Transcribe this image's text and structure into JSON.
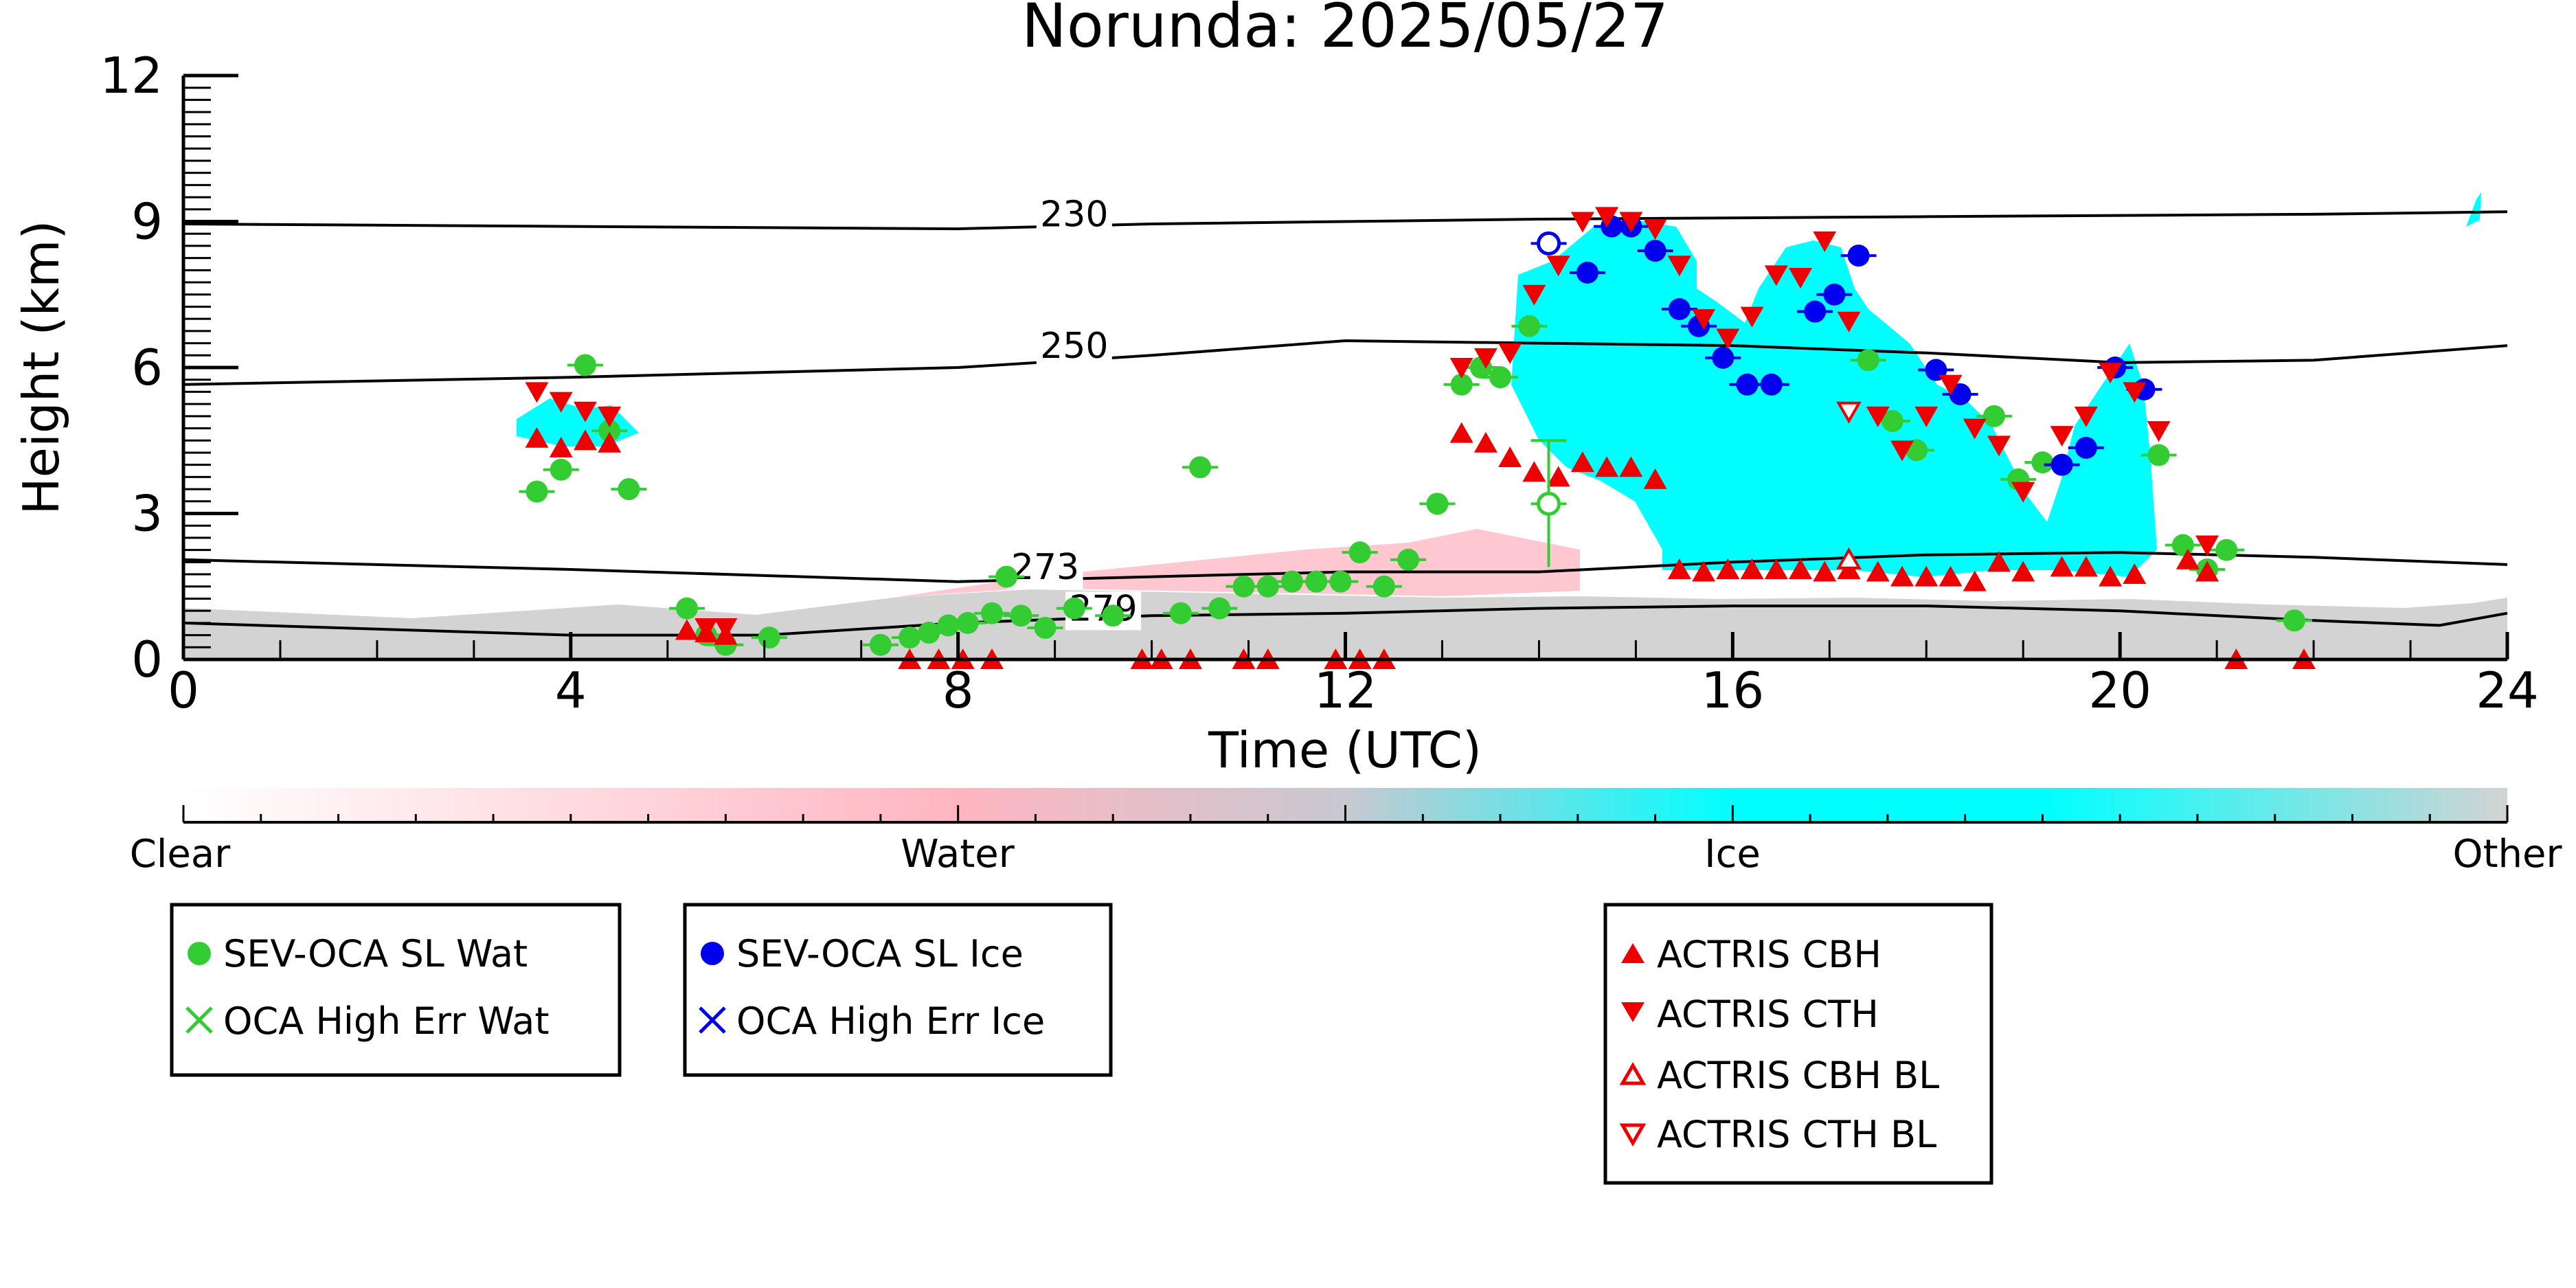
{
  "chart_data": {
    "type": "scatter",
    "title": "Norunda: 2025/05/27",
    "xlabel": "Time (UTC)",
    "ylabel": "Height (km)",
    "xlim": [
      0,
      24
    ],
    "ylim": [
      0,
      12
    ],
    "x_ticks": [
      0,
      4,
      8,
      12,
      16,
      20,
      24
    ],
    "y_ticks": [
      0,
      3,
      6,
      9,
      12
    ],
    "x_tick_labels": [
      "0",
      "4",
      "8",
      "12",
      "16",
      "20",
      "24"
    ],
    "y_tick_labels": [
      "0",
      "3",
      "6",
      "9",
      "12"
    ],
    "grid": false,
    "colorbar": {
      "labels": [
        "Clear",
        "Water",
        "Ice",
        "Other"
      ],
      "colors": [
        "#ffffff",
        "#ffb6c1",
        "#00ffff",
        "#d3d3d3"
      ]
    },
    "contours": [
      {
        "label": "230",
        "label_at": [
          9.2,
          8.9
        ],
        "points": [
          [
            0,
            8.95
          ],
          [
            4,
            8.9
          ],
          [
            8,
            8.85
          ],
          [
            10,
            8.95
          ],
          [
            14,
            9.05
          ],
          [
            18,
            9.1
          ],
          [
            22,
            9.15
          ],
          [
            24,
            9.2
          ]
        ]
      },
      {
        "label": "250",
        "label_at": [
          9.2,
          6.2
        ],
        "points": [
          [
            0,
            5.65
          ],
          [
            4,
            5.8
          ],
          [
            8,
            6.0
          ],
          [
            10,
            6.25
          ],
          [
            12,
            6.55
          ],
          [
            14,
            6.5
          ],
          [
            16,
            6.45
          ],
          [
            18,
            6.3
          ],
          [
            20,
            6.1
          ],
          [
            22,
            6.15
          ],
          [
            24,
            6.45
          ]
        ]
      },
      {
        "label": "273",
        "label_at": [
          8.9,
          1.65
        ],
        "points": [
          [
            0,
            2.05
          ],
          [
            4,
            1.85
          ],
          [
            8,
            1.6
          ],
          [
            10,
            1.7
          ],
          [
            12,
            1.8
          ],
          [
            14,
            1.8
          ],
          [
            16,
            2.0
          ],
          [
            18,
            2.15
          ],
          [
            20,
            2.2
          ],
          [
            22,
            2.1
          ],
          [
            24,
            1.95
          ]
        ]
      },
      {
        "label": "279",
        "label_at": [
          9.5,
          0.8
        ],
        "points": [
          [
            0,
            0.75
          ],
          [
            4,
            0.5
          ],
          [
            6,
            0.5
          ],
          [
            8,
            0.75
          ],
          [
            10,
            0.9
          ],
          [
            12,
            0.95
          ],
          [
            14,
            1.05
          ],
          [
            16,
            1.1
          ],
          [
            18,
            1.1
          ],
          [
            20,
            1.0
          ],
          [
            22,
            0.8
          ],
          [
            23.3,
            0.7
          ],
          [
            24,
            0.95
          ]
        ]
      }
    ],
    "series": [
      {
        "name": "SEV-OCA SL Wat",
        "marker": "circle",
        "color": "#33cc33",
        "points": [
          [
            3.65,
            3.45
          ],
          [
            3.9,
            3.9
          ],
          [
            4.15,
            6.05
          ],
          [
            4.4,
            4.7
          ],
          [
            4.6,
            3.5
          ],
          [
            5.2,
            1.05
          ],
          [
            5.4,
            0.5
          ],
          [
            5.6,
            0.3
          ],
          [
            6.05,
            0.45
          ],
          [
            7.2,
            0.3
          ],
          [
            7.5,
            0.45
          ],
          [
            7.7,
            0.55
          ],
          [
            7.9,
            0.7
          ],
          [
            8.1,
            0.75
          ],
          [
            8.35,
            0.95
          ],
          [
            8.5,
            1.7
          ],
          [
            8.65,
            0.9
          ],
          [
            8.9,
            0.65
          ],
          [
            9.2,
            1.05
          ],
          [
            9.6,
            0.9
          ],
          [
            10.3,
            0.95
          ],
          [
            10.5,
            3.95
          ],
          [
            10.7,
            1.05
          ],
          [
            10.95,
            1.5
          ],
          [
            11.2,
            1.5
          ],
          [
            11.45,
            1.6
          ],
          [
            11.7,
            1.6
          ],
          [
            11.95,
            1.6
          ],
          [
            12.15,
            2.2
          ],
          [
            12.4,
            1.5
          ],
          [
            12.65,
            2.05
          ],
          [
            12.95,
            3.2
          ],
          [
            13.2,
            5.65
          ],
          [
            13.4,
            6.0
          ],
          [
            13.6,
            5.8
          ],
          [
            13.9,
            6.85
          ],
          [
            17.4,
            6.15
          ],
          [
            17.65,
            4.9
          ],
          [
            17.9,
            4.3
          ],
          [
            18.7,
            5.0
          ],
          [
            18.95,
            3.7
          ],
          [
            19.2,
            4.05
          ],
          [
            20.4,
            4.2
          ],
          [
            20.65,
            2.35
          ],
          [
            20.9,
            1.85
          ],
          [
            21.1,
            2.25
          ],
          [
            21.8,
            0.8
          ]
        ]
      },
      {
        "name": "OCA High Err Wat",
        "marker": "cross",
        "color": "#33cc33",
        "points": []
      },
      {
        "name": "SEV-OCA SL Ice",
        "marker": "circle",
        "color": "#0000ee",
        "points": [
          [
            14.5,
            7.95
          ],
          [
            14.75,
            8.9
          ],
          [
            14.95,
            8.9
          ],
          [
            15.2,
            8.4
          ],
          [
            15.45,
            7.2
          ],
          [
            15.65,
            6.85
          ],
          [
            15.9,
            6.2
          ],
          [
            16.15,
            5.65
          ],
          [
            16.4,
            5.65
          ],
          [
            16.85,
            7.15
          ],
          [
            17.05,
            7.5
          ],
          [
            17.3,
            8.3
          ],
          [
            18.1,
            5.95
          ],
          [
            18.35,
            5.45
          ],
          [
            19.4,
            4.0
          ],
          [
            19.65,
            4.35
          ],
          [
            19.95,
            6.0
          ],
          [
            20.25,
            5.55
          ]
        ]
      },
      {
        "name": "OCA High Err Ice",
        "marker": "cross",
        "color": "#0000ee",
        "points": []
      },
      {
        "name": "ACTRIS CBH",
        "marker": "triangle-up",
        "color": "#ee0000",
        "points": [
          [
            3.65,
            4.55
          ],
          [
            3.9,
            4.35
          ],
          [
            4.15,
            4.5
          ],
          [
            4.4,
            4.45
          ],
          [
            5.2,
            0.6
          ],
          [
            5.4,
            0.55
          ],
          [
            5.6,
            0.5
          ],
          [
            7.5,
            0
          ],
          [
            7.8,
            0
          ],
          [
            8.05,
            0
          ],
          [
            8.35,
            0
          ],
          [
            9.9,
            0
          ],
          [
            10.1,
            0
          ],
          [
            10.4,
            0
          ],
          [
            10.95,
            0
          ],
          [
            11.2,
            0
          ],
          [
            11.9,
            0
          ],
          [
            12.15,
            0
          ],
          [
            12.4,
            0
          ],
          [
            13.2,
            4.65
          ],
          [
            13.45,
            4.45
          ],
          [
            13.7,
            4.15
          ],
          [
            13.95,
            3.85
          ],
          [
            14.2,
            3.75
          ],
          [
            14.45,
            4.05
          ],
          [
            14.7,
            3.95
          ],
          [
            14.95,
            3.95
          ],
          [
            15.2,
            3.7
          ],
          [
            15.45,
            1.85
          ],
          [
            15.7,
            1.8
          ],
          [
            15.95,
            1.85
          ],
          [
            16.2,
            1.85
          ],
          [
            16.45,
            1.85
          ],
          [
            16.7,
            1.85
          ],
          [
            16.95,
            1.8
          ],
          [
            17.2,
            1.85
          ],
          [
            17.5,
            1.8
          ],
          [
            17.75,
            1.7
          ],
          [
            18.0,
            1.7
          ],
          [
            18.25,
            1.7
          ],
          [
            18.5,
            1.6
          ],
          [
            18.75,
            2.0
          ],
          [
            19.0,
            1.8
          ],
          [
            19.4,
            1.9
          ],
          [
            19.65,
            1.9
          ],
          [
            19.9,
            1.7
          ],
          [
            20.15,
            1.75
          ],
          [
            20.7,
            2.05
          ],
          [
            20.9,
            1.8
          ],
          [
            21.2,
            0
          ],
          [
            21.9,
            0
          ]
        ]
      },
      {
        "name": "ACTRIS CTH",
        "marker": "triangle-down",
        "color": "#ee0000",
        "points": [
          [
            3.65,
            5.5
          ],
          [
            3.9,
            5.3
          ],
          [
            4.15,
            5.1
          ],
          [
            4.4,
            5.0
          ],
          [
            5.4,
            0.65
          ],
          [
            5.6,
            0.65
          ],
          [
            13.2,
            6.0
          ],
          [
            13.45,
            6.2
          ],
          [
            13.7,
            6.3
          ],
          [
            13.95,
            7.5
          ],
          [
            14.2,
            8.1
          ],
          [
            14.45,
            9.0
          ],
          [
            14.7,
            9.1
          ],
          [
            14.95,
            9.0
          ],
          [
            15.2,
            8.85
          ],
          [
            15.45,
            8.1
          ],
          [
            15.7,
            7.0
          ],
          [
            15.95,
            6.6
          ],
          [
            16.2,
            7.05
          ],
          [
            16.45,
            7.9
          ],
          [
            16.7,
            7.85
          ],
          [
            16.95,
            8.6
          ],
          [
            17.2,
            6.95
          ],
          [
            17.5,
            5.0
          ],
          [
            17.75,
            4.3
          ],
          [
            18.0,
            5.0
          ],
          [
            18.25,
            5.65
          ],
          [
            18.5,
            4.75
          ],
          [
            18.75,
            4.4
          ],
          [
            19.0,
            3.45
          ],
          [
            19.4,
            4.6
          ],
          [
            19.65,
            5.0
          ],
          [
            19.9,
            5.9
          ],
          [
            20.15,
            5.5
          ],
          [
            20.4,
            4.7
          ],
          [
            20.9,
            2.35
          ]
        ]
      },
      {
        "name": "ACTRIS CBH BL",
        "marker": "triangle-up-open",
        "color": "#ee0000",
        "points": [
          [
            17.2,
            2.05
          ]
        ]
      },
      {
        "name": "ACTRIS CTH BL",
        "marker": "triangle-down-open",
        "color": "#ee0000",
        "points": [
          [
            17.2,
            5.1
          ]
        ]
      }
    ],
    "open_markers": [
      {
        "series": "SEV-OCA SL Wat",
        "x": 14.1,
        "y": 3.2,
        "err_low": 1.9,
        "err_high": 4.5
      },
      {
        "series": "SEV-OCA SL Ice",
        "x": 14.1,
        "y": 8.55
      }
    ],
    "legends": [
      {
        "entries": [
          "SEV-OCA SL Wat",
          "OCA High Err Wat"
        ]
      },
      {
        "entries": [
          "SEV-OCA SL Ice",
          "OCA High Err Ice"
        ]
      },
      {
        "entries": [
          "ACTRIS CBH",
          "ACTRIS CTH",
          "ACTRIS CBH BL",
          "ACTRIS CTH BL"
        ]
      }
    ]
  }
}
